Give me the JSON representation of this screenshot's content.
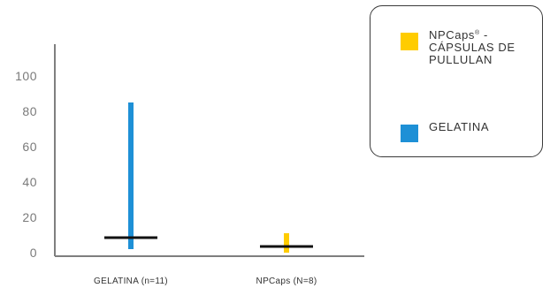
{
  "chart_data": {
    "type": "range",
    "categories": [
      "GELATINA (n=11)",
      "NPCaps (N=8)"
    ],
    "series": [
      {
        "category": "GELATINA (n=11)",
        "color": "#1e90d6",
        "min": 2,
        "max": 85,
        "median": 8.5
      },
      {
        "category": "NPCaps (N=8)",
        "color": "#ffcc00",
        "min": 0,
        "max": 11,
        "median": 3.5
      }
    ],
    "yticks": [
      0,
      20,
      40,
      60,
      80,
      100
    ],
    "ylim": [
      -2,
      118
    ],
    "median_color": "#111111",
    "axis_color": "#7f7f7f",
    "grid": false,
    "legend_position": "top-right",
    "legend": [
      {
        "label": "NPCaps",
        "sup": "®",
        "label_rest": " - CÁPSULAS DE PULLULAN",
        "color": "#ffcc00"
      },
      {
        "label": "GELATINA",
        "sup": "",
        "label_rest": "",
        "color": "#1e90d6"
      }
    ]
  }
}
